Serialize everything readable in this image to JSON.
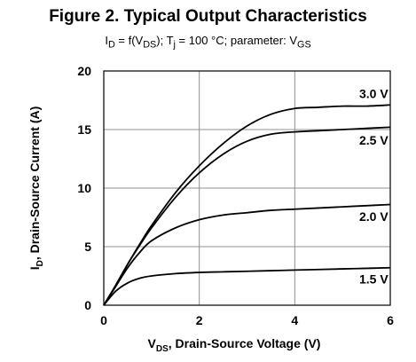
{
  "figure": {
    "title": "Figure 2.  Typical Output Characteristics",
    "subtitle": "I_D = f(V_DS); T_j = 100 °C; parameter: V_GS",
    "subtitle_parts": {
      "a": "I",
      "a_sub": "D",
      "b": " = f(V",
      "b_sub": "DS",
      "c": "); T",
      "c_sub": "j",
      "d": " = 100 °C; parameter: V",
      "d_sub": "GS"
    }
  },
  "chart_data": {
    "type": "line",
    "title": "Figure 2.  Typical Output Characteristics",
    "subtitle": "I_D = f(V_DS); T_j = 100 °C; parameter: V_GS",
    "xlabel": "V_DS, Drain-Source Voltage (V)",
    "ylabel": "I_D, Drain-Source Current (A)",
    "xlabel_parts": {
      "main": "V",
      "sub": "DS",
      "rest": ", Drain-Source Voltage (V)"
    },
    "ylabel_parts": {
      "main": "I",
      "sub": "D",
      "rest": ", Drain-Source Current (A)"
    },
    "xlim": [
      0,
      6
    ],
    "ylim": [
      0,
      20
    ],
    "xticks": [
      0,
      2,
      4,
      6
    ],
    "yticks": [
      0,
      5,
      10,
      15,
      20
    ],
    "grid": true,
    "legend": "inline labels at right end of curves",
    "series": [
      {
        "name": "3.0 V",
        "x": [
          0,
          0.25,
          0.5,
          0.75,
          1.0,
          1.5,
          2.0,
          2.5,
          3.0,
          3.5,
          4.0,
          4.5,
          5.0,
          5.5,
          6.0
        ],
        "y": [
          0,
          1.7,
          3.5,
          5.2,
          6.8,
          9.6,
          11.9,
          13.8,
          15.3,
          16.3,
          16.8,
          16.9,
          17.0,
          17.0,
          17.1
        ]
      },
      {
        "name": "2.5 V",
        "x": [
          0,
          0.25,
          0.5,
          0.75,
          1.0,
          1.5,
          2.0,
          2.5,
          3.0,
          3.5,
          4.0,
          4.5,
          5.0,
          5.5,
          6.0
        ],
        "y": [
          0,
          1.7,
          3.5,
          5.1,
          6.6,
          9.2,
          11.3,
          12.9,
          14.0,
          14.6,
          14.8,
          14.9,
          15.0,
          15.1,
          15.2
        ]
      },
      {
        "name": "2.0 V",
        "x": [
          0,
          0.25,
          0.5,
          0.75,
          1.0,
          1.5,
          2.0,
          2.5,
          3.0,
          3.5,
          4.0,
          4.5,
          5.0,
          5.5,
          6.0
        ],
        "y": [
          0,
          1.6,
          3.2,
          4.5,
          5.5,
          6.6,
          7.3,
          7.7,
          7.9,
          8.1,
          8.2,
          8.3,
          8.4,
          8.5,
          8.6
        ]
      },
      {
        "name": "1.5 V",
        "x": [
          0,
          0.25,
          0.5,
          0.75,
          1.0,
          1.5,
          2.0,
          2.5,
          3.0,
          3.5,
          4.0,
          4.5,
          5.0,
          5.5,
          6.0
        ],
        "y": [
          0,
          1.2,
          1.9,
          2.3,
          2.5,
          2.7,
          2.8,
          2.85,
          2.9,
          2.95,
          3.0,
          3.05,
          3.1,
          3.15,
          3.2
        ]
      }
    ],
    "curve_labels": [
      {
        "text": "3.0 V",
        "x": 5.35,
        "y": 17.7
      },
      {
        "text": "2.5 V",
        "x": 5.35,
        "y": 13.7
      },
      {
        "text": "2.0 V",
        "x": 5.35,
        "y": 7.2
      },
      {
        "text": "1.5 V",
        "x": 5.35,
        "y": 1.85
      }
    ]
  },
  "colors": {
    "line": "#000000",
    "grid": "#909090",
    "axis": "#000000",
    "background": "#ffffff"
  }
}
